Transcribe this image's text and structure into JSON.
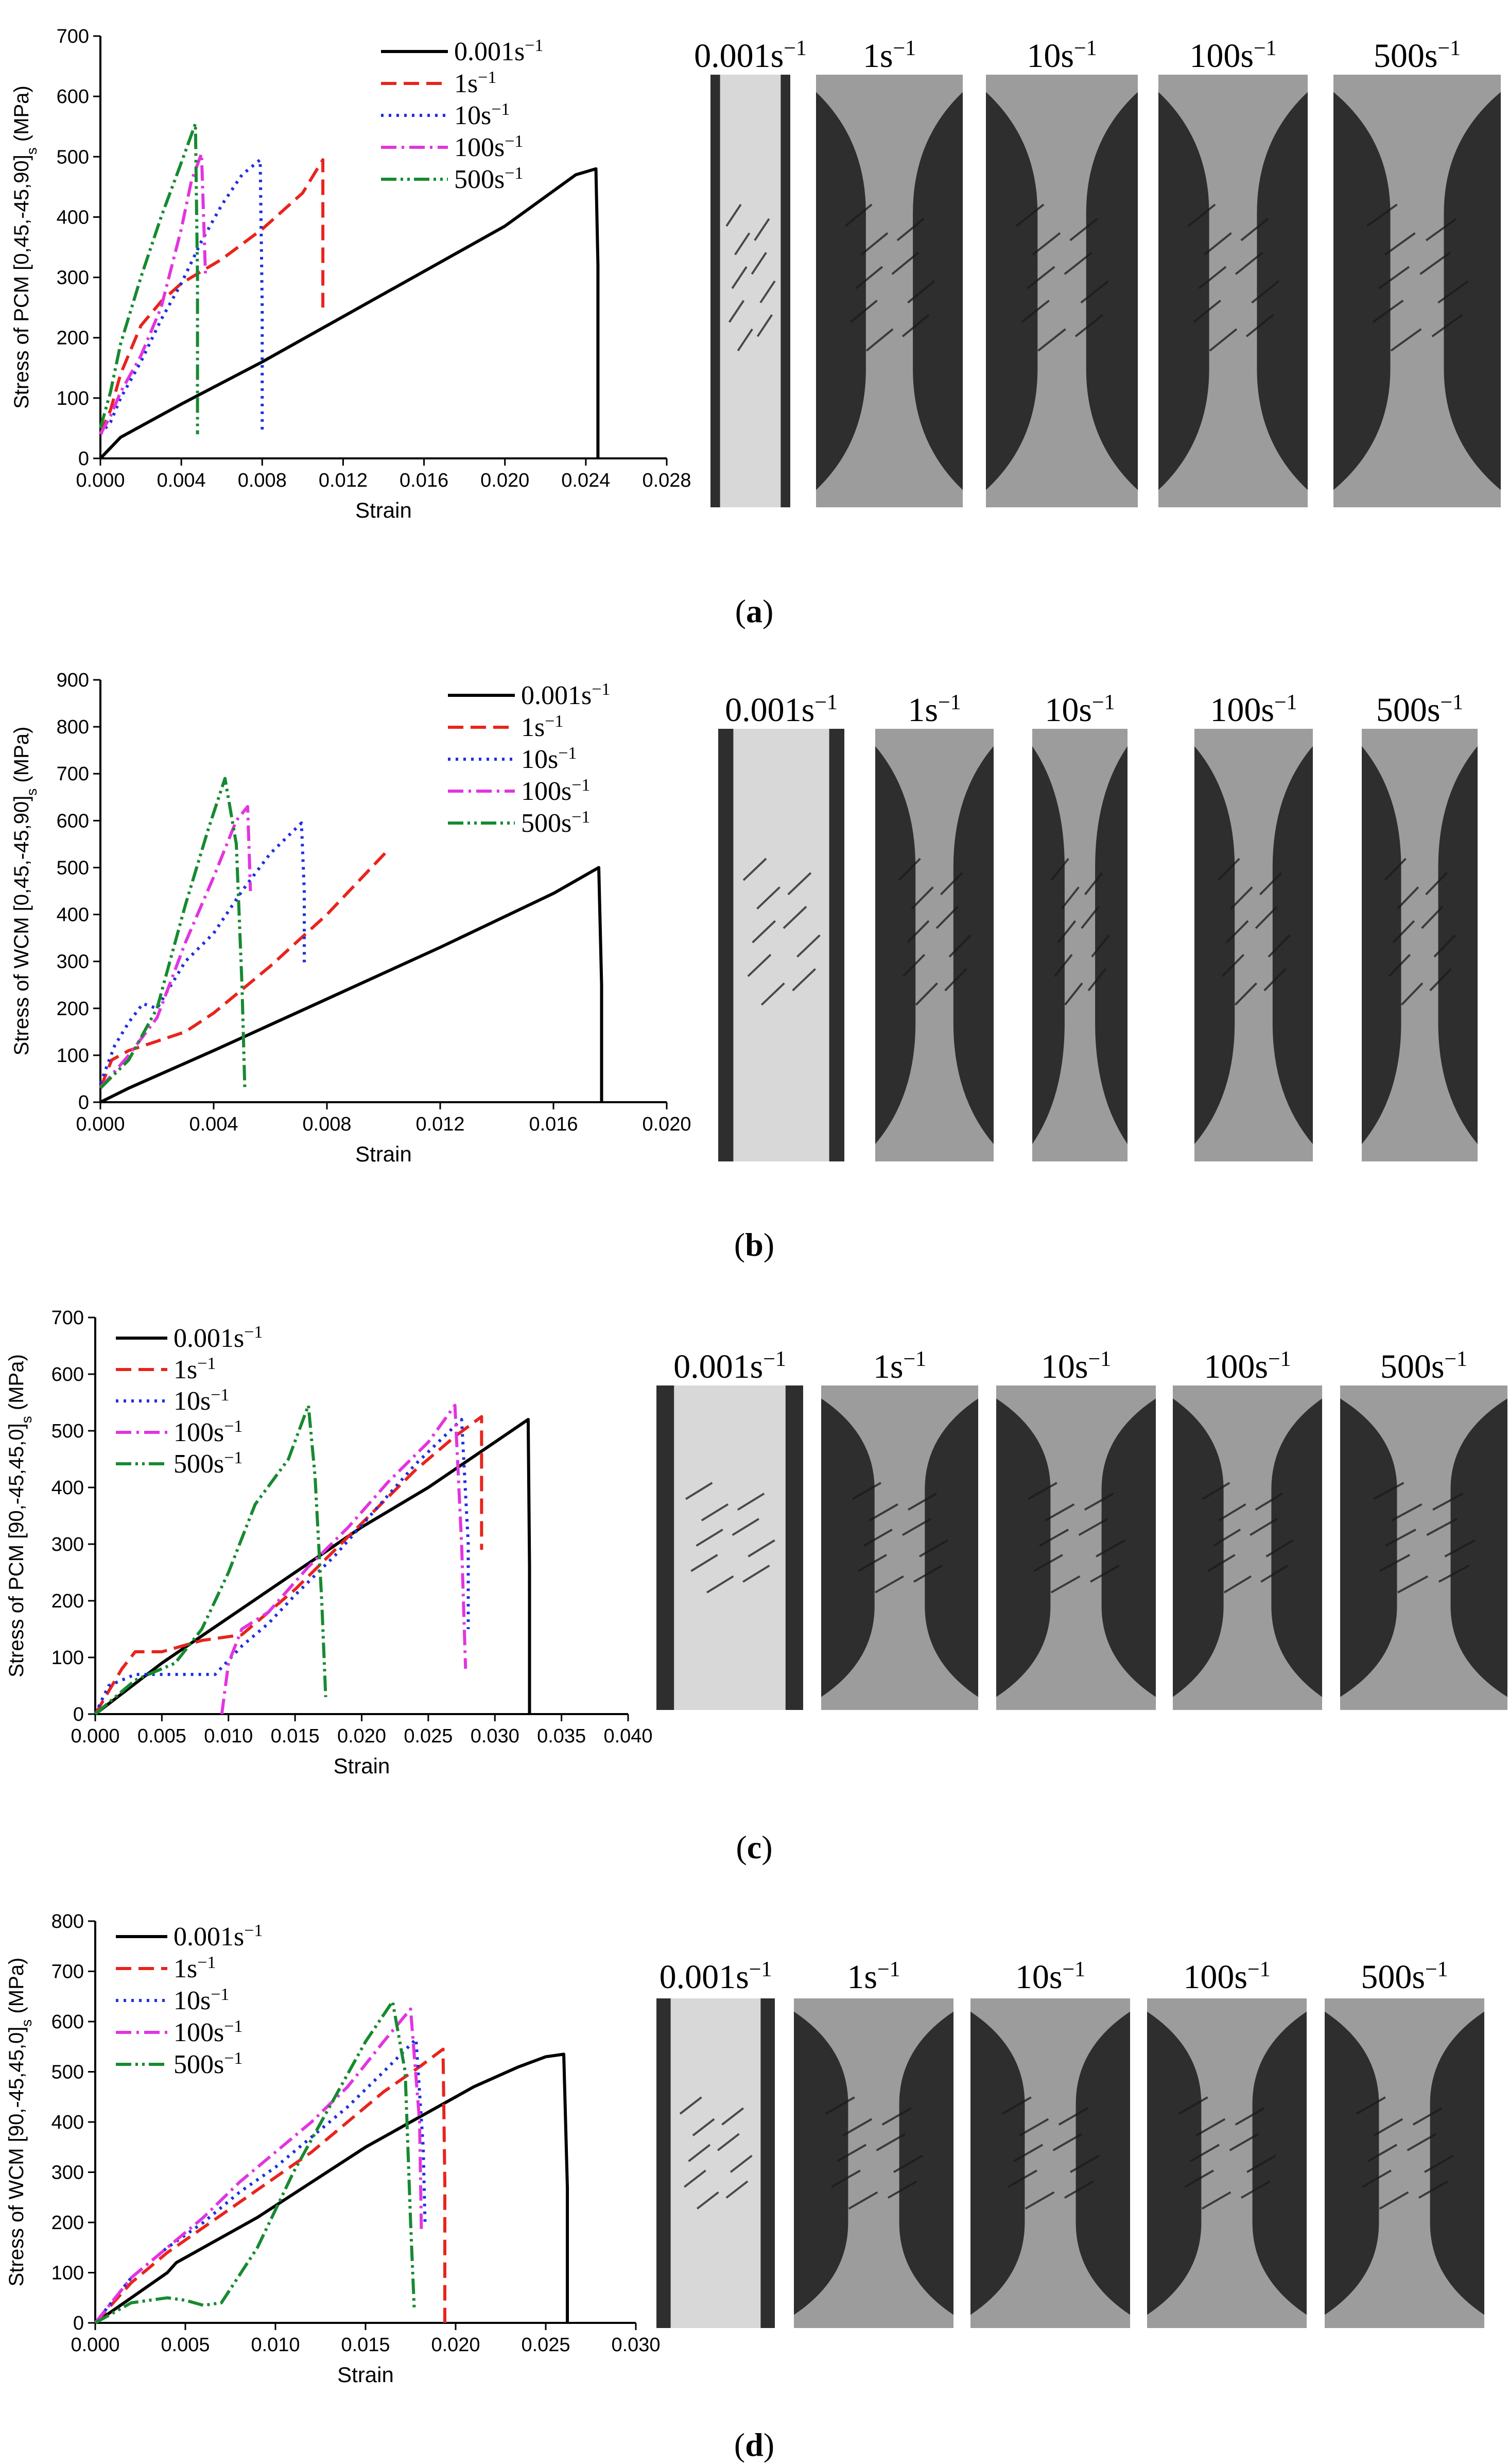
{
  "panels": [
    {
      "caption": "a",
      "photo_labels": [
        "0.001s",
        "1s",
        "10s",
        "100s",
        "500s"
      ],
      "label_exponent": "−1",
      "chart_data": {
        "type": "line",
        "title": "",
        "xlabel": "Strain",
        "ylabel_main": "Stress of PCM [0,45,-45,90]",
        "ylabel_sub": "s",
        "ylabel_unit": " (MPa)",
        "xlim": [
          0,
          0.028
        ],
        "ylim": [
          0,
          700
        ],
        "xticks": [
          "0.000",
          "0.004",
          "0.008",
          "0.012",
          "0.016",
          "0.020",
          "0.024",
          "0.028"
        ],
        "yticks": [
          "0",
          "100",
          "200",
          "300",
          "400",
          "500",
          "600",
          "700"
        ],
        "legend_position": "top-right",
        "series": [
          {
            "name": "0.001s",
            "color": "#000000",
            "dash": "solid",
            "x": [
              0,
              0.001,
              0.004,
              0.008,
              0.012,
              0.016,
              0.02,
              0.0235,
              0.0245,
              0.0246,
              0.0246
            ],
            "y": [
              0,
              35,
              90,
              160,
              235,
              310,
              385,
              470,
              480,
              320,
              0
            ]
          },
          {
            "name": "1s",
            "color": "#e8241d",
            "dash": "dash",
            "x": [
              0,
              0.0005,
              0.001,
              0.002,
              0.003,
              0.004,
              0.006,
              0.008,
              0.01,
              0.011,
              0.011,
              0.011
            ],
            "y": [
              40,
              80,
              140,
              220,
              260,
              290,
              330,
              380,
              440,
              495,
              380,
              250
            ]
          },
          {
            "name": "10s",
            "color": "#1f2fe0",
            "dash": "dot",
            "x": [
              0,
              0.0005,
              0.001,
              0.002,
              0.003,
              0.004,
              0.005,
              0.006,
              0.007,
              0.0079,
              0.008,
              0.008
            ],
            "y": [
              40,
              60,
              100,
              160,
              230,
              290,
              360,
              420,
              470,
              495,
              250,
              40
            ]
          },
          {
            "name": "100s",
            "color": "#e234e0",
            "dash": "dashdot",
            "x": [
              0,
              0.0005,
              0.001,
              0.002,
              0.003,
              0.004,
              0.0045,
              0.005,
              0.0052
            ],
            "y": [
              40,
              70,
              110,
              170,
              250,
              380,
              460,
              505,
              300
            ]
          },
          {
            "name": "500s",
            "color": "#168a30",
            "dash": "dashdotdot",
            "x": [
              0,
              0.0005,
              0.001,
              0.002,
              0.003,
              0.004,
              0.0047,
              0.0048,
              0.0048
            ],
            "y": [
              50,
              110,
              190,
              300,
              400,
              490,
              555,
              300,
              40
            ]
          }
        ]
      }
    },
    {
      "caption": "b",
      "photo_labels": [
        "0.001s",
        "1s",
        "10s",
        "100s",
        "500s"
      ],
      "label_exponent": "−1",
      "chart_data": {
        "type": "line",
        "title": "",
        "xlabel": "Strain",
        "ylabel_main": "Stress of WCM [0,45,-45,90]",
        "ylabel_sub": "s",
        "ylabel_unit": " (MPa)",
        "xlim": [
          0,
          0.02
        ],
        "ylim": [
          0,
          900
        ],
        "xticks": [
          "0.000",
          "0.004",
          "0.008",
          "0.012",
          "0.016",
          "0.020"
        ],
        "yticks": [
          "0",
          "100",
          "200",
          "300",
          "400",
          "500",
          "600",
          "700",
          "800",
          "900"
        ],
        "legend_position": "top-right",
        "series": [
          {
            "name": "0.001s",
            "color": "#000000",
            "dash": "solid",
            "x": [
              0,
              0.001,
              0.004,
              0.008,
              0.012,
              0.016,
              0.0176,
              0.0177,
              0.0177
            ],
            "y": [
              0,
              30,
              110,
              220,
              330,
              445,
              500,
              250,
              0
            ]
          },
          {
            "name": "1s",
            "color": "#e8241d",
            "dash": "dash",
            "x": [
              0,
              0.0004,
              0.001,
              0.002,
              0.003,
              0.004,
              0.006,
              0.008,
              0.0102
            ],
            "y": [
              30,
              90,
              110,
              130,
              150,
              190,
              290,
              400,
              540
            ]
          },
          {
            "name": "10s",
            "color": "#1f2fe0",
            "dash": "dot",
            "x": [
              0,
              0.0005,
              0.001,
              0.0015,
              0.002,
              0.0025,
              0.003,
              0.004,
              0.005,
              0.006,
              0.0071,
              0.0072,
              0.0072
            ],
            "y": [
              40,
              120,
              170,
              210,
              200,
              250,
              300,
              360,
              450,
              530,
              595,
              450,
              290
            ]
          },
          {
            "name": "100s",
            "color": "#e234e0",
            "dash": "dashdot",
            "x": [
              0,
              0.001,
              0.002,
              0.003,
              0.004,
              0.0048,
              0.0052,
              0.0053
            ],
            "y": [
              30,
              100,
              180,
              340,
              480,
              600,
              630,
              450
            ]
          },
          {
            "name": "500s",
            "color": "#168a30",
            "dash": "dashdotdot",
            "x": [
              0,
              0.0005,
              0.001,
              0.002,
              0.003,
              0.0038,
              0.0044,
              0.0048,
              0.005,
              0.0051
            ],
            "y": [
              30,
              60,
              90,
              200,
              420,
              580,
              690,
              550,
              250,
              30
            ]
          }
        ]
      }
    },
    {
      "caption": "c",
      "photo_labels": [
        "0.001s",
        "1s",
        "10s",
        "100s",
        "500s"
      ],
      "label_exponent": "−1",
      "chart_data": {
        "type": "line",
        "title": "",
        "xlabel": "Strain",
        "ylabel_main": "Stress of PCM [90,-45,45,0]",
        "ylabel_sub": "s",
        "ylabel_unit": " (MPa)",
        "xlim": [
          0,
          0.04
        ],
        "ylim": [
          0,
          700
        ],
        "xticks": [
          "0.000",
          "0.005",
          "0.010",
          "0.015",
          "0.020",
          "0.025",
          "0.030",
          "0.035",
          "0.040"
        ],
        "yticks": [
          "0",
          "100",
          "200",
          "300",
          "400",
          "500",
          "600",
          "700"
        ],
        "legend_position": "top-left",
        "series": [
          {
            "name": "0.001s",
            "color": "#000000",
            "dash": "solid",
            "x": [
              0,
              0.005,
              0.01,
              0.015,
              0.02,
              0.025,
              0.03,
              0.0325,
              0.0326,
              0.0326
            ],
            "y": [
              0,
              90,
              170,
              250,
              330,
              400,
              480,
              520,
              260,
              0
            ]
          },
          {
            "name": "1s",
            "color": "#e8241d",
            "dash": "dash",
            "x": [
              0,
              0.002,
              0.003,
              0.005,
              0.008,
              0.011,
              0.013,
              0.015,
              0.018,
              0.021,
              0.024,
              0.027,
              0.029,
              0.029
            ],
            "y": [
              0,
              80,
              110,
              110,
              130,
              140,
              180,
              220,
              290,
              360,
              430,
              490,
              525,
              290
            ]
          },
          {
            "name": "10s",
            "color": "#1f2fe0",
            "dash": "dot",
            "x": [
              0,
              0.001,
              0.003,
              0.006,
              0.009,
              0.011,
              0.013,
              0.015,
              0.018,
              0.021,
              0.024,
              0.0275,
              0.028,
              0.028
            ],
            "y": [
              0,
              50,
              70,
              70,
              70,
              120,
              160,
              210,
              280,
              360,
              440,
              520,
              300,
              150
            ]
          },
          {
            "name": "100s",
            "color": "#e234e0",
            "dash": "dashdot",
            "x": [
              0.0095,
              0.01,
              0.011,
              0.013,
              0.016,
              0.019,
              0.022,
              0.025,
              0.027,
              0.0275,
              0.0278
            ],
            "y": [
              0,
              90,
              150,
              180,
              260,
              330,
              410,
              480,
              545,
              300,
              80
            ]
          },
          {
            "name": "500s",
            "color": "#168a30",
            "dash": "dashdotdot",
            "x": [
              0,
              0.003,
              0.006,
              0.008,
              0.01,
              0.012,
              0.0145,
              0.016,
              0.0165,
              0.017,
              0.0173
            ],
            "y": [
              0,
              60,
              90,
              150,
              250,
              370,
              450,
              545,
              420,
              200,
              30
            ]
          }
        ]
      }
    },
    {
      "caption": "d",
      "photo_labels": [
        "0.001s",
        "1s",
        "10s",
        "100s",
        "500s"
      ],
      "label_exponent": "−1",
      "chart_data": {
        "type": "line",
        "title": "",
        "xlabel": "Strain",
        "ylabel_main": "Stress of WCM [90,-45,45,0]",
        "ylabel_sub": "s",
        "ylabel_unit": " (MPa)",
        "xlim": [
          0,
          0.03
        ],
        "ylim": [
          0,
          800
        ],
        "xticks": [
          "0.000",
          "0.005",
          "0.010",
          "0.015",
          "0.020",
          "0.025",
          "0.030"
        ],
        "yticks": [
          "0",
          "100",
          "200",
          "300",
          "400",
          "500",
          "600",
          "700",
          "800"
        ],
        "legend_position": "top-left",
        "series": [
          {
            "name": "0.001s",
            "color": "#000000",
            "dash": "solid",
            "x": [
              0,
              0.002,
              0.004,
              0.0045,
              0.006,
              0.009,
              0.012,
              0.015,
              0.018,
              0.021,
              0.0235,
              0.025,
              0.026,
              0.0262,
              0.0262
            ],
            "y": [
              0,
              50,
              100,
              120,
              150,
              210,
              280,
              350,
              410,
              470,
              510,
              530,
              535,
              270,
              0
            ]
          },
          {
            "name": "1s",
            "color": "#e8241d",
            "dash": "dash",
            "x": [
              0,
              0.002,
              0.004,
              0.006,
              0.008,
              0.01,
              0.012,
              0.014,
              0.016,
              0.018,
              0.0193,
              0.0194,
              0.0194
            ],
            "y": [
              0,
              80,
              140,
              190,
              240,
              290,
              340,
              400,
              460,
              510,
              545,
              280,
              0
            ]
          },
          {
            "name": "10s",
            "color": "#1f2fe0",
            "dash": "dot",
            "x": [
              0,
              0.002,
              0.004,
              0.006,
              0.008,
              0.01,
              0.012,
              0.014,
              0.016,
              0.0178,
              0.0182,
              0.0183
            ],
            "y": [
              0,
              90,
              150,
              200,
              260,
              310,
              370,
              430,
              500,
              565,
              350,
              200
            ]
          },
          {
            "name": "100s",
            "color": "#e234e0",
            "dash": "dashdot",
            "x": [
              0,
              0.002,
              0.004,
              0.006,
              0.008,
              0.01,
              0.012,
              0.014,
              0.016,
              0.0175,
              0.018,
              0.0181
            ],
            "y": [
              0,
              90,
              150,
              210,
              280,
              340,
              400,
              470,
              560,
              625,
              400,
              180
            ]
          },
          {
            "name": "500s",
            "color": "#168a30",
            "dash": "dashdotdot",
            "x": [
              0,
              0.002,
              0.004,
              0.005,
              0.006,
              0.007,
              0.009,
              0.011,
              0.013,
              0.015,
              0.0165,
              0.0172,
              0.0175,
              0.0177
            ],
            "y": [
              0,
              40,
              50,
              45,
              35,
              40,
              150,
              300,
              430,
              560,
              640,
              500,
              200,
              30
            ]
          }
        ]
      }
    }
  ]
}
